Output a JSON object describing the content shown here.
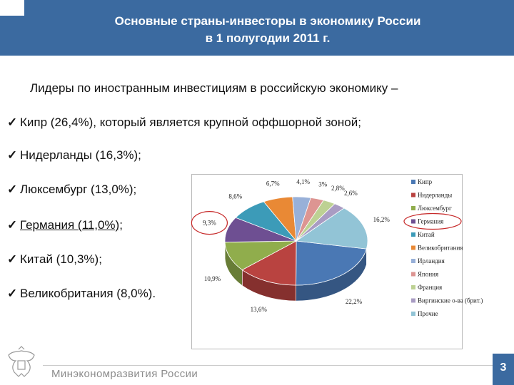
{
  "header": {
    "title_line1": "Основные страны-инвесторы в экономику России",
    "title_line2": "в 1 полугодии 2011 г."
  },
  "intro": "Лидеры по иностранным инвестициям в российскую экономику –",
  "bullets": [
    "Кипр (26,4%), который является крупной оффшорной зоной;",
    "Нидерланды (16,3%);",
    "Люксембург (13,0%);",
    "Германия (11,0%);",
    "Китай (10,3%);",
    "Великобритания (8,0%)."
  ],
  "chart_data": {
    "type": "pie",
    "categories": [
      "Кипр",
      "Нидерланды",
      "Люксембург",
      "Германия",
      "Китай",
      "Великобритания",
      "Ирландия",
      "Япония",
      "Франция",
      "Виргинские о-ва (брит.)",
      "Прочие"
    ],
    "values": [
      22.2,
      13.6,
      10.9,
      9.3,
      8.6,
      6.7,
      4.1,
      3.0,
      2.8,
      2.6,
      16.2
    ],
    "labels": [
      "22,2%",
      "13,6%",
      "10,9%",
      "9,3%",
      "8,6%",
      "6,7%",
      "4,1%",
      "3%",
      "2,8%",
      "2,6%",
      "16,2%"
    ],
    "colors": [
      "#4a78b4",
      "#b94340",
      "#90ad4c",
      "#6e4f92",
      "#3c9bb8",
      "#e98935",
      "#98b0d8",
      "#dd9592",
      "#bdd193",
      "#a99cc3",
      "#92c4d6"
    ],
    "legend_position": "right",
    "highlighted": "Германия"
  },
  "footer": {
    "org": "Минэкономразвития России",
    "page": "3"
  }
}
